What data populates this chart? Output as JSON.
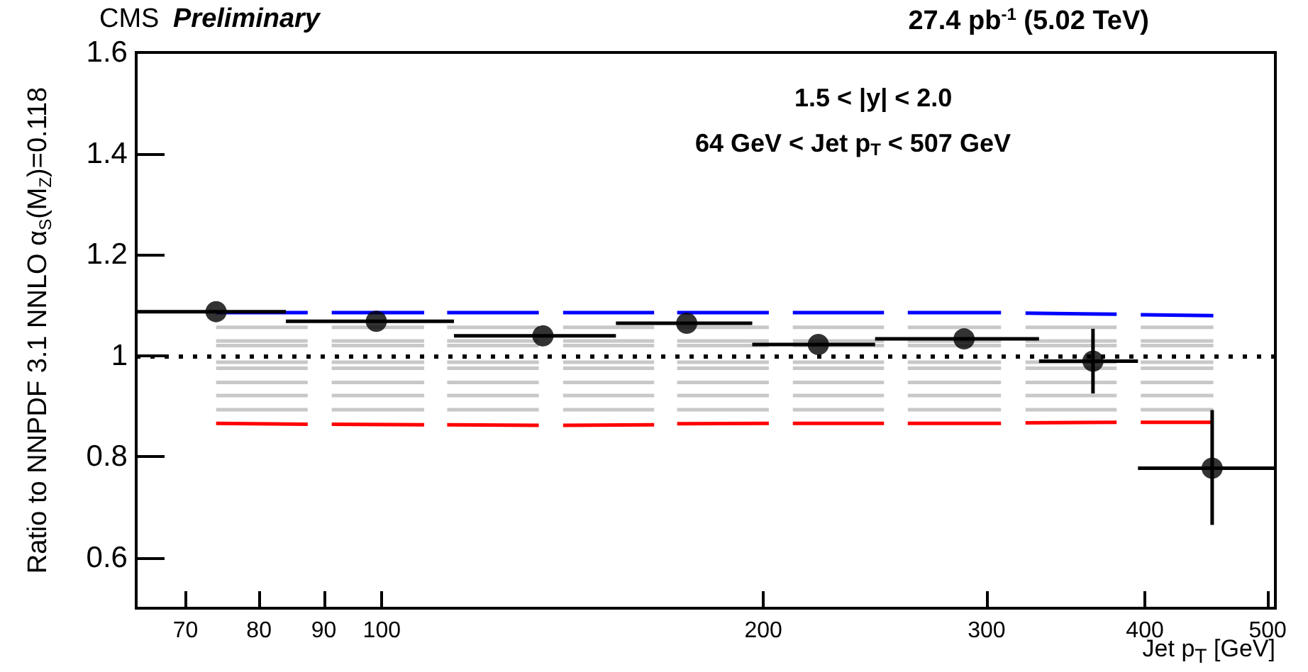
{
  "chart_data": {
    "type": "scatter",
    "title": "CMS",
    "subtitle": "Preliminary",
    "xlabel": "Jet p$_{T}$ [GeV]",
    "ylabel": "Ratio to NNPDF 3.1 NNLO α$_{S}$(M$_{Z}$)=0.118",
    "annotations": [
      "27.4 pb$^{-1}$ (5.02 TeV)",
      "1.5 < |y| < 2.0",
      "64 GeV < Jet p$_{T}$ < 507 GeV"
    ],
    "log": "x",
    "xlim": [
      64,
      507
    ],
    "xticks": [
      70,
      80,
      90,
      100,
      200,
      300,
      400,
      500
    ],
    "ylim": [
      0.5,
      1.6
    ],
    "yticks": [
      0.6,
      0.8,
      1,
      1.2,
      1.4,
      1.6
    ],
    "grid": false,
    "marker": "circle",
    "ref_lines": [
      {
        "axis": "y",
        "value": 1,
        "color": "#000000",
        "line_style": "dotted"
      }
    ],
    "series": [
      {
        "type": "line",
        "color": "#c8c8c8",
        "marker": "none",
        "x": [
          74,
          87.4,
          89,
          91.3,
          108,
          110,
          112.6,
          133,
          136,
          139,
          164,
          167,
          171,
          202,
          206,
          211,
          249,
          254,
          260,
          308,
          315,
          322,
          380,
          388,
          397,
          453
        ],
        "values": [
          1.056,
          1.056,
          null,
          1.056,
          1.056,
          null,
          1.056,
          1.056,
          null,
          1.056,
          1.056,
          null,
          1.056,
          1.056,
          null,
          1.056,
          1.056,
          null,
          1.056,
          1.056,
          null,
          1.056,
          1.056,
          null,
          1.056,
          1.056
        ]
      },
      {
        "type": "line",
        "color": "#c8c8c8",
        "marker": "none",
        "x": [
          74,
          87.4,
          89,
          91.3,
          108,
          110,
          112.6,
          133,
          136,
          139,
          164,
          167,
          171,
          202,
          206,
          211,
          249,
          254,
          260,
          308,
          315,
          322,
          380,
          388,
          397,
          453
        ],
        "values": [
          1.029,
          1.029,
          null,
          1.029,
          1.029,
          null,
          1.029,
          1.029,
          null,
          1.029,
          1.029,
          null,
          1.029,
          1.029,
          null,
          1.029,
          1.029,
          null,
          1.029,
          1.029,
          null,
          1.029,
          1.029,
          null,
          1.029,
          1.029
        ]
      },
      {
        "type": "line",
        "color": "#c8c8c8",
        "marker": "none",
        "x": [
          74,
          87.4,
          89,
          91.3,
          108,
          110,
          112.6,
          133,
          136,
          139,
          164,
          167,
          171,
          202,
          206,
          211,
          249,
          254,
          260,
          308,
          315,
          322,
          380,
          388,
          397,
          453
        ],
        "values": [
          1.02,
          1.02,
          null,
          1.02,
          1.02,
          null,
          1.02,
          1.02,
          null,
          1.02,
          1.02,
          null,
          1.02,
          1.02,
          null,
          1.02,
          1.02,
          null,
          1.02,
          1.02,
          null,
          1.02,
          1.02,
          null,
          1.02,
          1.02
        ]
      },
      {
        "type": "line",
        "color": "#c8c8c8",
        "marker": "none",
        "x": [
          74,
          87.4,
          89,
          91.3,
          108,
          110,
          112.6,
          133,
          136,
          139,
          164,
          167,
          171,
          202,
          206,
          211,
          249,
          254,
          260,
          308,
          315,
          322,
          380,
          388,
          397,
          453
        ],
        "values": [
          0.987,
          0.987,
          null,
          0.987,
          0.987,
          null,
          0.987,
          0.987,
          null,
          0.987,
          0.987,
          null,
          0.987,
          0.987,
          null,
          0.987,
          0.987,
          null,
          0.987,
          0.987,
          null,
          0.987,
          0.987,
          null,
          0.987,
          0.987
        ]
      },
      {
        "type": "line",
        "color": "#c8c8c8",
        "marker": "none",
        "x": [
          74,
          87.4,
          89,
          91.3,
          108,
          110,
          112.6,
          133,
          136,
          139,
          164,
          167,
          171,
          202,
          206,
          211,
          249,
          254,
          260,
          308,
          315,
          322,
          380,
          388,
          397,
          453
        ],
        "values": [
          0.975,
          0.975,
          null,
          0.975,
          0.975,
          null,
          0.975,
          0.975,
          null,
          0.975,
          0.975,
          null,
          0.975,
          0.975,
          null,
          0.975,
          0.975,
          null,
          0.975,
          0.975,
          null,
          0.975,
          0.975,
          null,
          0.975,
          0.975
        ]
      },
      {
        "type": "line",
        "color": "#c8c8c8",
        "marker": "none",
        "x": [
          74,
          87.4,
          89,
          91.3,
          108,
          110,
          112.6,
          133,
          136,
          139,
          164,
          167,
          171,
          202,
          206,
          211,
          249,
          254,
          260,
          308,
          315,
          322,
          380,
          388,
          397,
          453
        ],
        "values": [
          0.947,
          0.947,
          null,
          0.947,
          0.947,
          null,
          0.947,
          0.947,
          null,
          0.947,
          0.947,
          null,
          0.947,
          0.947,
          null,
          0.947,
          0.947,
          null,
          0.947,
          0.947,
          null,
          0.947,
          0.947,
          null,
          0.947,
          0.947
        ]
      },
      {
        "type": "line",
        "color": "#c8c8c8",
        "marker": "none",
        "x": [
          74,
          87.4,
          89,
          91.3,
          108,
          110,
          112.6,
          133,
          136,
          139,
          164,
          167,
          171,
          202,
          206,
          211,
          249,
          254,
          260,
          308,
          315,
          322,
          380,
          388,
          397,
          453
        ],
        "values": [
          0.921,
          0.921,
          null,
          0.921,
          0.921,
          null,
          0.921,
          0.921,
          null,
          0.921,
          0.921,
          null,
          0.921,
          0.921,
          null,
          0.921,
          0.921,
          null,
          0.921,
          0.921,
          null,
          0.921,
          0.921,
          null,
          0.921,
          0.921
        ]
      },
      {
        "type": "line",
        "color": "#c8c8c8",
        "marker": "none",
        "x": [
          74,
          87.4,
          89,
          91.3,
          108,
          110,
          112.6,
          133,
          136,
          139,
          164,
          167,
          171,
          202,
          206,
          211,
          249,
          254,
          260,
          308,
          315,
          322,
          380,
          388,
          397,
          453
        ],
        "values": [
          0.893,
          0.893,
          null,
          0.893,
          0.893,
          null,
          0.893,
          0.893,
          null,
          0.893,
          0.893,
          null,
          0.893,
          0.893,
          null,
          0.893,
          0.893,
          null,
          0.893,
          0.893,
          null,
          0.893,
          0.893,
          null,
          0.893,
          0.893
        ]
      },
      {
        "type": "line",
        "color": "#0000ff",
        "marker": "none",
        "x": [
          74,
          87.4,
          89,
          91.3,
          108,
          110,
          112.6,
          133,
          136,
          139,
          164,
          167,
          171,
          202,
          206,
          211,
          249,
          254,
          260,
          308,
          315,
          322,
          380,
          388,
          397,
          453
        ],
        "values": [
          1.085,
          1.085,
          null,
          1.085,
          1.085,
          null,
          1.085,
          1.085,
          null,
          1.085,
          1.085,
          null,
          1.085,
          1.085,
          null,
          1.085,
          1.085,
          null,
          1.085,
          1.085,
          null,
          1.084,
          1.082,
          null,
          1.081,
          1.079
        ]
      },
      {
        "type": "line",
        "color": "#ff0000",
        "marker": "none",
        "x": [
          74,
          87.4,
          89,
          91.3,
          108,
          110,
          112.6,
          133,
          136,
          139,
          164,
          167,
          171,
          202,
          206,
          211,
          249,
          254,
          260,
          308,
          315,
          322,
          380,
          388,
          397,
          453
        ],
        "values": [
          0.866,
          0.864,
          null,
          0.864,
          0.863,
          null,
          0.863,
          0.862,
          null,
          0.862,
          0.863,
          null,
          0.865,
          0.866,
          null,
          0.866,
          0.866,
          null,
          0.866,
          0.866,
          null,
          0.867,
          0.868,
          null,
          0.868,
          0.868
        ]
      },
      {
        "color": "#000000",
        "x": [
          74,
          99,
          134,
          174,
          221,
          288,
          364,
          452
        ],
        "values": [
          1.087,
          1.068,
          1.039,
          1.064,
          1.022,
          1.033,
          0.989,
          0.777
        ],
        "xerrors": [
          [
            64,
            84
          ],
          [
            84,
            114
          ],
          [
            114,
            153
          ],
          [
            153,
            196
          ],
          [
            196,
            245
          ],
          [
            245,
            330
          ],
          [
            330,
            395
          ],
          [
            395,
            507
          ]
        ],
        "errors": [
          null,
          null,
          null,
          null,
          null,
          null,
          [
            0.925,
            1.053
          ],
          [
            0.665,
            0.892
          ]
        ]
      }
    ]
  }
}
